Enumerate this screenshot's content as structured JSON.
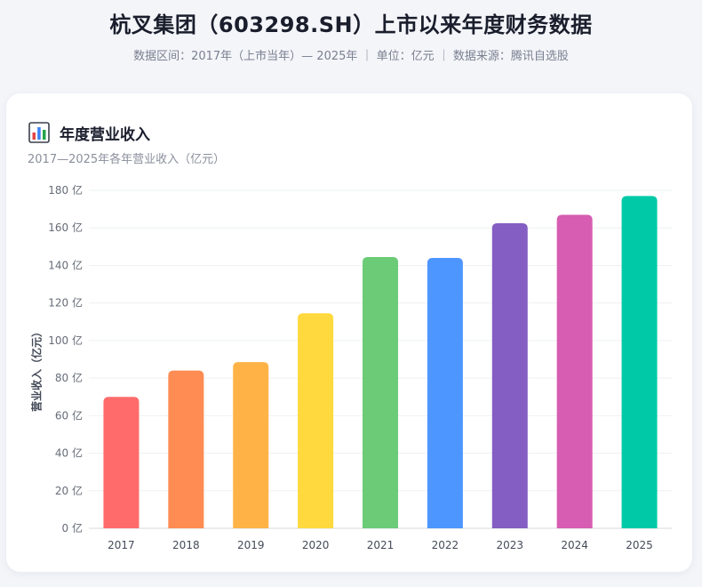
{
  "header": {
    "title": "杭叉集团（603298.SH）上市以来年度财务数据",
    "subtitle": "数据区间：2017年（上市当年）— 2025年 ｜ 单位：亿元 ｜ 数据来源：腾讯自选股"
  },
  "card": {
    "icon": "bar-chart-icon",
    "title": "年度营业收入",
    "subtitle": "2017—2025年各年营业收入（亿元）"
  },
  "chart_data": {
    "type": "bar",
    "categories": [
      "2017",
      "2018",
      "2019",
      "2020",
      "2021",
      "2022",
      "2023",
      "2024",
      "2025"
    ],
    "values": [
      70,
      84,
      88.5,
      114.5,
      144.5,
      144,
      162.5,
      167,
      177
    ],
    "ylabel": "营业收入（亿元）",
    "ylim": [
      0,
      180
    ],
    "y_ticks": [
      0,
      20,
      40,
      60,
      80,
      100,
      120,
      140,
      160,
      180
    ],
    "y_tick_suffix": " 亿",
    "grid": true,
    "colors": [
      "#ff6b6b",
      "#ff8c52",
      "#ffb347",
      "#ffd93d",
      "#6bcb77",
      "#4d96ff",
      "#845ec2",
      "#d65db1",
      "#00c9a7"
    ]
  }
}
